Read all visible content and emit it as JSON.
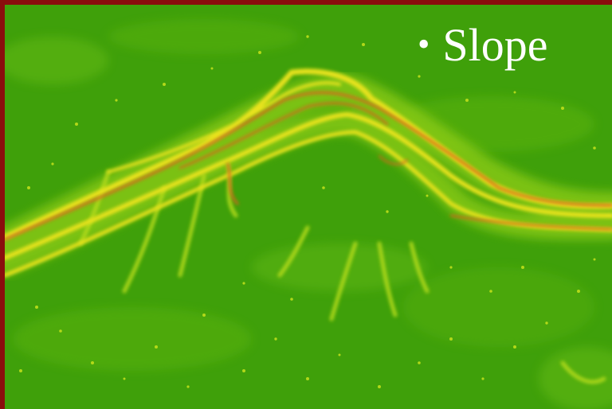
{
  "image": {
    "caption": "Slope",
    "bullet_glyph": "•",
    "colors": {
      "frame": "#8a0d0d",
      "flat_terrain": "#3fa00a",
      "moderate_slope": "#a8d818",
      "steep_slope": "#e9e31e",
      "very_steep_slope": "#d8651e"
    }
  }
}
